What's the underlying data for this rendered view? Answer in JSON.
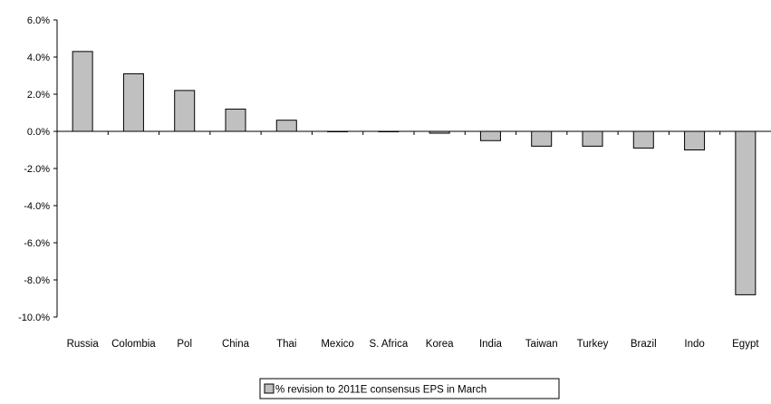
{
  "chart_data": {
    "type": "bar",
    "categories": [
      "Russia",
      "Colombia",
      "Pol",
      "China",
      "Thai",
      "Mexico",
      "S. Africa",
      "Korea",
      "India",
      "Taiwan",
      "Turkey",
      "Brazil",
      "Indo",
      "Egypt"
    ],
    "series": [
      {
        "name": "% revision to 2011E consensus EPS in March",
        "values": [
          4.3,
          3.1,
          2.2,
          1.2,
          0.6,
          0.0,
          0.0,
          -0.1,
          -0.5,
          -0.8,
          -0.8,
          -0.9,
          -1.0,
          -8.8
        ],
        "color": "#c0c0c0"
      }
    ],
    "ylim": [
      -10.0,
      6.0
    ],
    "yticks": [
      "6.0%",
      "4.0%",
      "2.0%",
      "0.0%",
      "-2.0%",
      "-4.0%",
      "-6.0%",
      "-8.0%",
      "-10.0%"
    ],
    "ytick_values": [
      6,
      4,
      2,
      0,
      -2,
      -4,
      -6,
      -8,
      -10
    ],
    "title": "",
    "xlabel": "",
    "ylabel": "",
    "grid": false,
    "legend_position": "bottom"
  }
}
